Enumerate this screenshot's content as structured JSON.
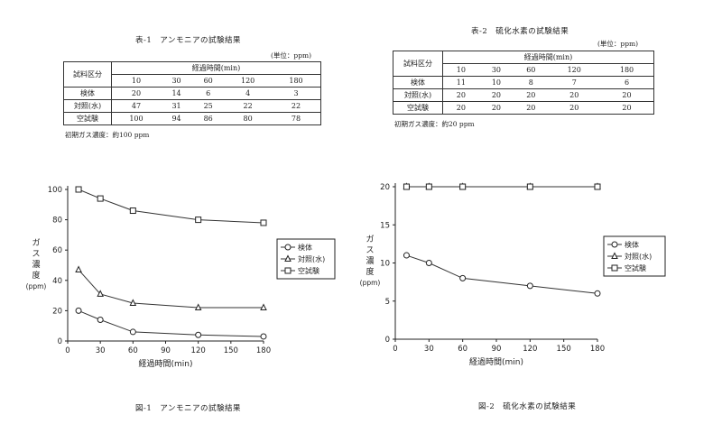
{
  "table1": {
    "title": "表-1　アンモニアの試験結果",
    "unit": "(単位：ppm)",
    "header_row": "試料区分",
    "header_time": "経過時間(min)",
    "times": [
      "10",
      "30",
      "60",
      "120",
      "180"
    ],
    "rows": [
      {
        "label": "検体",
        "values": [
          "20",
          "14",
          "6",
          "4",
          "3"
        ]
      },
      {
        "label": "対照(水)",
        "values": [
          "47",
          "31",
          "25",
          "22",
          "22"
        ]
      },
      {
        "label": "空試験",
        "values": [
          "100",
          "94",
          "86",
          "80",
          "78"
        ]
      }
    ],
    "note": "初期ガス濃度：約100 ppm"
  },
  "table2": {
    "title": "表-2　硫化水素の試験結果",
    "unit": "(単位：ppm)",
    "header_row": "試料区分",
    "header_time": "経過時間(min)",
    "times": [
      "10",
      "30",
      "60",
      "120",
      "180"
    ],
    "rows": [
      {
        "label": "検体",
        "values": [
          "11",
          "10",
          "8",
          "7",
          "6"
        ]
      },
      {
        "label": "対照(水)",
        "values": [
          "20",
          "20",
          "20",
          "20",
          "20"
        ]
      },
      {
        "label": "空試験",
        "values": [
          "20",
          "20",
          "20",
          "20",
          "20"
        ]
      }
    ],
    "note": "初期ガス濃度：約20 ppm"
  },
  "chart_data": [
    {
      "type": "line",
      "caption": "図-1　アンモニアの試験結果",
      "xlabel": "経過時間(min)",
      "ylabel": [
        "ガ",
        "ス",
        "濃",
        "度",
        "(ppm)"
      ],
      "x": [
        10,
        30,
        60,
        120,
        180
      ],
      "xticks": [
        0,
        30,
        60,
        90,
        120,
        150,
        180
      ],
      "yticks": [
        0,
        20,
        40,
        60,
        80,
        100
      ],
      "xlim": [
        0,
        180
      ],
      "ylim": [
        0,
        100
      ],
      "legend_position": "right",
      "series": [
        {
          "name": "検体",
          "marker": "circle",
          "values": [
            20,
            14,
            6,
            4,
            3
          ]
        },
        {
          "name": "対照(水)",
          "marker": "triangle",
          "values": [
            47,
            31,
            25,
            22,
            22
          ]
        },
        {
          "name": "空試験",
          "marker": "square",
          "values": [
            100,
            94,
            86,
            80,
            78
          ]
        }
      ]
    },
    {
      "type": "line",
      "caption": "図-2　硫化水素の試験結果",
      "xlabel": "経過時間(min)",
      "ylabel": [
        "ガ",
        "ス",
        "濃",
        "度",
        "(ppm)"
      ],
      "x": [
        10,
        30,
        60,
        120,
        180
      ],
      "xticks": [
        0,
        30,
        60,
        90,
        120,
        150,
        180
      ],
      "yticks": [
        0,
        5,
        10,
        15,
        20
      ],
      "xlim": [
        0,
        180
      ],
      "ylim": [
        0,
        20
      ],
      "legend_position": "right",
      "series": [
        {
          "name": "検体",
          "marker": "circle",
          "values": [
            11,
            10,
            8,
            7,
            6
          ]
        },
        {
          "name": "対照(水)",
          "marker": "triangle",
          "values": [
            20,
            20,
            20,
            20,
            20
          ]
        },
        {
          "name": "空試験",
          "marker": "square",
          "values": [
            20,
            20,
            20,
            20,
            20
          ]
        }
      ]
    }
  ]
}
